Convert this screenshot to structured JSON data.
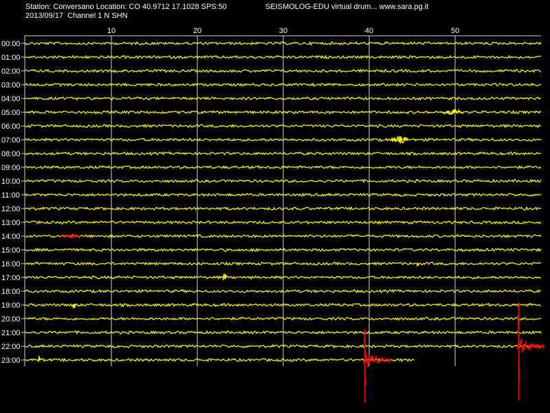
{
  "header": {
    "station_line": "Station: Conversano Location: CO 40.9712 17.1028 SPS:50",
    "app_line": "SEISMOLOG-EDU virtual drum... www.sara.pg.it",
    "date_channel_line": "2013/09/17  Channel 1 N SHN"
  },
  "drum": {
    "minute_ticks": [
      10,
      20,
      30,
      40,
      50
    ],
    "minutes_per_line": 60,
    "hours": [
      "00:00",
      "01:00",
      "02:00",
      "03:00",
      "04:00",
      "05:00",
      "06:00",
      "07:00",
      "08:00",
      "09:00",
      "10:00",
      "11:00",
      "12:00",
      "13:00",
      "14:00",
      "15:00",
      "16:00",
      "17:00",
      "18:00",
      "19:00",
      "20:00",
      "21:00",
      "22:00",
      "23:00"
    ],
    "last_line_end_minute": 45.3,
    "colors": {
      "background": "#000000",
      "trace": "#ffff00",
      "event": "#ff0000",
      "grid": "#d8d8d8",
      "text": "#ffffff"
    },
    "marks": [
      {
        "hour": 5,
        "minute": 48.5,
        "kind": "noise-burst",
        "color": "trace",
        "len": 2.5,
        "amp": 3
      },
      {
        "hour": 7,
        "minute": 42.5,
        "kind": "noise-burst",
        "color": "trace",
        "len": 2.0,
        "amp": 4
      },
      {
        "hour": 14,
        "minute": 4.0,
        "kind": "noise-burst",
        "color": "event",
        "len": 2.5,
        "amp": 2
      },
      {
        "hour": 16,
        "minute": 45.5,
        "kind": "spike",
        "color": "trace",
        "len": 0.3,
        "amp": 6
      },
      {
        "hour": 17,
        "minute": 23.0,
        "kind": "spike",
        "color": "trace",
        "len": 0.5,
        "amp": 5
      },
      {
        "hour": 19,
        "minute": 5.5,
        "kind": "spike",
        "color": "trace",
        "len": 0.4,
        "amp": 5
      },
      {
        "hour": 23,
        "minute": 1.5,
        "kind": "spike",
        "color": "trace",
        "len": 0.4,
        "amp": 4
      }
    ],
    "events": [
      {
        "name": "event-a",
        "hour": 23,
        "minute": 39.5,
        "up": 45,
        "down": 62,
        "coda": 3.0
      },
      {
        "name": "event-b",
        "hour": 22,
        "minute": 57.4,
        "up": 64,
        "down": 78,
        "coda": 3.0
      }
    ]
  }
}
